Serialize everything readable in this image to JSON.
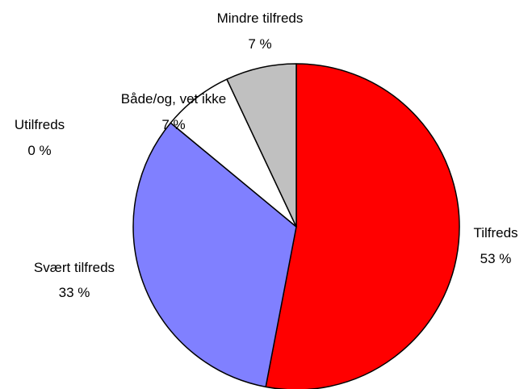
{
  "chart_data": {
    "type": "pie",
    "title": "",
    "slices": [
      {
        "label": "Tilfreds",
        "value": 53,
        "value_label": "53 %",
        "color": "#FF0000"
      },
      {
        "label": "Svært tilfreds",
        "value": 33,
        "value_label": "33 %",
        "color": "#8080FF"
      },
      {
        "label": "Utilfreds",
        "value": 0,
        "value_label": "0 %",
        "color": "#8080FF"
      },
      {
        "label": "Både/og, vet ikke",
        "value": 7,
        "value_label": "7 %",
        "color": "#FFFFFF"
      },
      {
        "label": "Mindre tilfreds",
        "value": 7,
        "value_label": "7 %",
        "color": "#C0C0C0"
      }
    ]
  }
}
